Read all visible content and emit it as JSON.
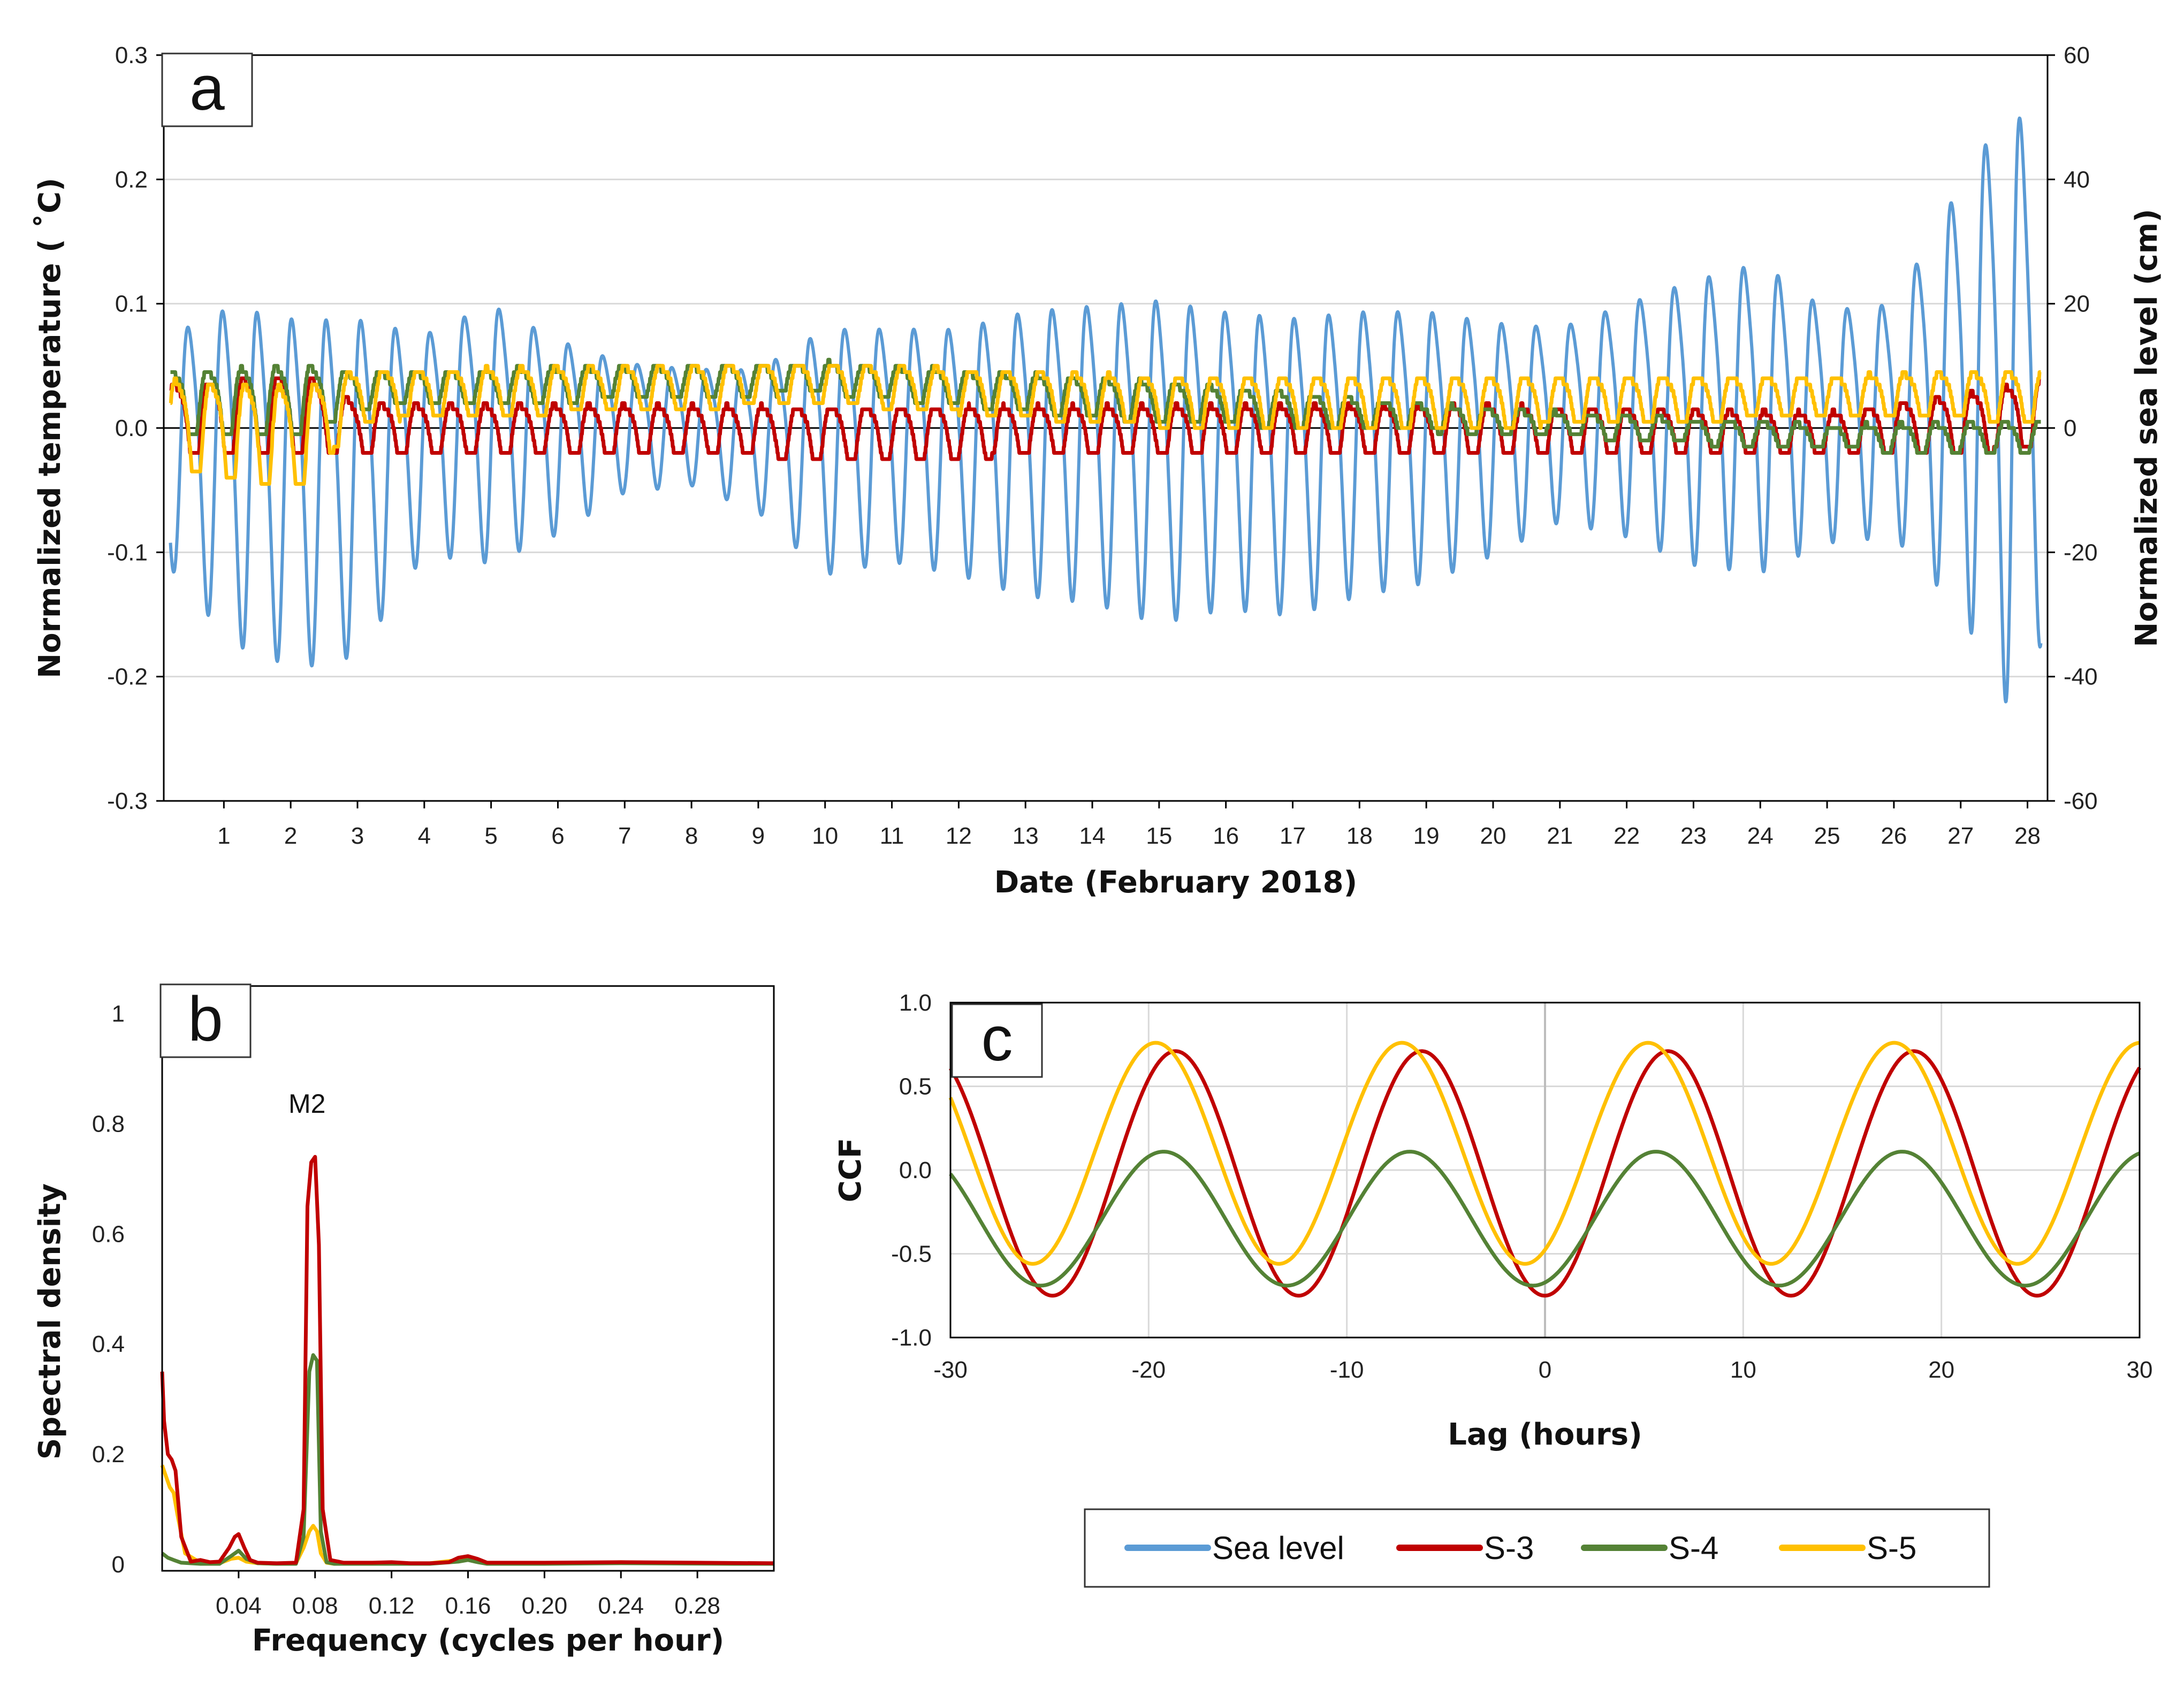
{
  "colors": {
    "sea_level": "#5b9bd5",
    "s3": "#c00000",
    "s4": "#548235",
    "s5": "#ffc000",
    "grid": "#d9d9d9",
    "axis": "#000000"
  },
  "legend": {
    "items": [
      {
        "name": "Sea level",
        "color": "#5b9bd5"
      },
      {
        "name": "S-3",
        "color": "#c00000"
      },
      {
        "name": "S-4",
        "color": "#548235"
      },
      {
        "name": "S-5",
        "color": "#ffc000"
      }
    ]
  },
  "chart_data": [
    {
      "id": "a",
      "panel_label": "a",
      "type": "line",
      "title": "",
      "xlabel": "Date (February 2018)",
      "ylabel": "Normalized temperature ( ˚C)",
      "y2label": "Normalized sea level (cm)",
      "xlim": [
        0.1,
        28.3
      ],
      "ylim": [
        -0.3,
        0.3
      ],
      "y2lim": [
        -60,
        60
      ],
      "x_ticks": [
        1,
        2,
        3,
        4,
        5,
        6,
        7,
        8,
        9,
        10,
        11,
        12,
        13,
        14,
        15,
        16,
        17,
        18,
        19,
        20,
        21,
        22,
        23,
        24,
        25,
        26,
        27,
        28
      ],
      "x_tick_labels": [
        "1",
        "2",
        "3",
        "4",
        "5",
        "6",
        "7",
        "8",
        "9",
        "10",
        "11",
        "12",
        "13",
        "14",
        "15",
        "16",
        "17",
        "18",
        "19",
        "20",
        "21",
        "22",
        "23",
        "24",
        "25",
        "26",
        "27",
        "28"
      ],
      "y_ticks": [
        -0.3,
        -0.2,
        -0.1,
        0.0,
        0.1,
        0.2,
        0.3
      ],
      "y_tick_labels": [
        "-0.3",
        "-0.2",
        "-0.1",
        "0.0",
        "0.1",
        "0.2",
        "0.3"
      ],
      "y2_ticks": [
        -60,
        -40,
        -20,
        0,
        20,
        40,
        60
      ],
      "y2_tick_labels": [
        "-60",
        "-40",
        "-20",
        "0",
        "20",
        "40",
        "60"
      ],
      "grid": true,
      "series": [
        {
          "name": "Sea level",
          "axis": "right",
          "period_days": 0.5175,
          "phase": 1.9,
          "envelope_days": [
            0.2,
            1.1,
            2.1,
            3.0,
            4.0,
            5.0,
            6.0,
            7.0,
            8.0,
            9.0,
            10.0,
            11.0,
            12.0,
            13.0,
            14.0,
            15.0,
            16.0,
            17.0,
            18.0,
            19.0,
            20.0,
            21.0,
            22.0,
            23.0,
            24.0,
            25.0,
            26.0,
            27.0,
            27.8,
            28.2
          ],
          "envelope_amp_cm": [
            18,
            26,
            27,
            26,
            17,
            20,
            15,
            10,
            9,
            11,
            19,
            18,
            19,
            22,
            23,
            25,
            23,
            23,
            22,
            21,
            18,
            15,
            18,
            22,
            24,
            18,
            18,
            33,
            48,
            35
          ],
          "envelope_offset_cm": [
            -2,
            -5,
            -8,
            -7,
            -1,
            1,
            0,
            1,
            1,
            -1,
            -2,
            -1,
            -2,
            -2,
            -2,
            -3,
            -3,
            -4,
            -2,
            -1,
            0,
            2,
            3,
            3,
            4,
            2,
            3,
            8,
            8,
            5
          ]
        },
        {
          "name": "S-3",
          "axis": "left",
          "period_days": 0.5175,
          "phase": 4.3,
          "envelope_days": [
            0.2,
            2.2,
            3.0,
            10.0,
            20.0,
            25.0,
            27.5,
            28.2
          ],
          "envelope_amp": [
            0.035,
            0.04,
            0.025,
            0.025,
            0.025,
            0.02,
            0.03,
            0.035
          ],
          "envelope_offset": [
            0.005,
            0.01,
            -0.002,
            -0.004,
            -0.003,
            -0.005,
            0.005,
            0.01
          ]
        },
        {
          "name": "S-4",
          "axis": "left",
          "period_days": 0.5175,
          "phase": 4.6,
          "envelope_days": [
            0.2,
            2.2,
            3.0,
            10.0,
            15.0,
            20.0,
            25.0,
            28.2
          ],
          "envelope_amp": [
            0.03,
            0.035,
            0.018,
            0.015,
            0.02,
            0.012,
            0.012,
            0.015
          ],
          "envelope_offset": [
            0.02,
            0.02,
            0.03,
            0.04,
            0.02,
            0.005,
            -0.008,
            -0.008
          ]
        },
        {
          "name": "S-5",
          "axis": "left",
          "period_days": 0.5175,
          "phase": 4.0,
          "envelope_days": [
            0.2,
            2.2,
            3.0,
            10.0,
            15.0,
            20.0,
            25.0,
            28.2
          ],
          "envelope_amp": [
            0.045,
            0.05,
            0.025,
            0.02,
            0.025,
            0.025,
            0.02,
            0.025
          ],
          "envelope_offset": [
            0.0,
            -0.01,
            0.025,
            0.035,
            0.02,
            0.02,
            0.025,
            0.025
          ]
        }
      ]
    },
    {
      "id": "b",
      "panel_label": "b",
      "type": "line",
      "xlabel": "Frequency (cycles per hour)",
      "ylabel": "Spectral density",
      "xlim": [
        0.0,
        0.32
      ],
      "ylim": [
        0.0,
        1.05
      ],
      "x_ticks": [
        0.04,
        0.08,
        0.12,
        0.16,
        0.2,
        0.24,
        0.28
      ],
      "x_tick_labels": [
        "0.04",
        "0.08",
        "0.12",
        "0.16",
        "0.20",
        "0.24",
        "0.28"
      ],
      "y_ticks": [
        0,
        0.2,
        0.4,
        0.6,
        0.8,
        1
      ],
      "y_tick_labels": [
        "0",
        "0.2",
        "0.4",
        "0.6",
        "0.8",
        "1"
      ],
      "annotations": [
        {
          "text": "M2",
          "x": 0.08,
          "y": 0.82
        }
      ],
      "series": [
        {
          "name": "S-5",
          "x": [
            0.0,
            0.002,
            0.004,
            0.006,
            0.008,
            0.012,
            0.02,
            0.03,
            0.036,
            0.04,
            0.044,
            0.05,
            0.06,
            0.07,
            0.074,
            0.077,
            0.079,
            0.081,
            0.083,
            0.086,
            0.09,
            0.1,
            0.12,
            0.14,
            0.155,
            0.16,
            0.165,
            0.17,
            0.2,
            0.24,
            0.3,
            0.32
          ],
          "y": [
            0.18,
            0.16,
            0.14,
            0.13,
            0.09,
            0.02,
            0.003,
            0.002,
            0.01,
            0.012,
            0.005,
            0.002,
            0.001,
            0.002,
            0.03,
            0.06,
            0.07,
            0.06,
            0.02,
            0.003,
            0.001,
            0.002,
            0.002,
            0.002,
            0.008,
            0.01,
            0.005,
            0.002,
            0.002,
            0.004,
            0.001,
            0.001
          ]
        },
        {
          "name": "S-4",
          "x": [
            0.0,
            0.003,
            0.006,
            0.01,
            0.02,
            0.03,
            0.036,
            0.04,
            0.044,
            0.05,
            0.06,
            0.07,
            0.074,
            0.077,
            0.079,
            0.081,
            0.083,
            0.086,
            0.09,
            0.1,
            0.12,
            0.14,
            0.155,
            0.16,
            0.165,
            0.17,
            0.2,
            0.24,
            0.3,
            0.32
          ],
          "y": [
            0.02,
            0.012,
            0.008,
            0.003,
            0.001,
            0.001,
            0.015,
            0.025,
            0.01,
            0.002,
            0.001,
            0.001,
            0.05,
            0.35,
            0.38,
            0.37,
            0.06,
            0.004,
            0.001,
            0.001,
            0.001,
            0.001,
            0.005,
            0.008,
            0.004,
            0.001,
            0.001,
            0.002,
            0.001,
            0.001
          ]
        },
        {
          "name": "S-3",
          "x": [
            0.0,
            0.001,
            0.003,
            0.005,
            0.007,
            0.01,
            0.015,
            0.02,
            0.025,
            0.03,
            0.035,
            0.038,
            0.04,
            0.043,
            0.046,
            0.05,
            0.06,
            0.07,
            0.074,
            0.076,
            0.078,
            0.08,
            0.082,
            0.084,
            0.088,
            0.095,
            0.11,
            0.12,
            0.13,
            0.14,
            0.15,
            0.155,
            0.16,
            0.165,
            0.17,
            0.2,
            0.24,
            0.28,
            0.32
          ],
          "y": [
            0.35,
            0.26,
            0.2,
            0.19,
            0.17,
            0.05,
            0.005,
            0.008,
            0.004,
            0.005,
            0.03,
            0.05,
            0.055,
            0.03,
            0.008,
            0.003,
            0.002,
            0.003,
            0.1,
            0.65,
            0.73,
            0.74,
            0.58,
            0.1,
            0.008,
            0.003,
            0.003,
            0.004,
            0.002,
            0.002,
            0.004,
            0.012,
            0.015,
            0.01,
            0.003,
            0.003,
            0.004,
            0.003,
            0.002
          ]
        }
      ]
    },
    {
      "id": "c",
      "panel_label": "c",
      "type": "line",
      "xlabel": "Lag (hours)",
      "ylabel": "CCF",
      "xlim": [
        -30,
        30
      ],
      "ylim": [
        -1.0,
        1.0
      ],
      "x_ticks": [
        -30,
        -20,
        -10,
        0,
        10,
        20,
        30
      ],
      "x_tick_labels": [
        "-30",
        "-20",
        "-10",
        "0",
        "10",
        "20",
        "30"
      ],
      "y_ticks": [
        -1.0,
        -0.5,
        0.0,
        0.5,
        1.0
      ],
      "y_tick_labels": [
        "-1.0",
        "-0.5",
        "0.0",
        "0.5",
        "1.0"
      ],
      "grid": true,
      "series": [
        {
          "name": "S-3",
          "period_hours": 12.42,
          "peak_lag_hours": 6.2,
          "amplitude": 0.73,
          "offset": -0.02
        },
        {
          "name": "S-4",
          "period_hours": 12.42,
          "peak_lag_hours": 5.6,
          "amplitude": 0.4,
          "offset": -0.29
        },
        {
          "name": "S-5",
          "period_hours": 12.42,
          "peak_lag_hours": 5.2,
          "amplitude": 0.66,
          "offset": 0.1
        }
      ]
    }
  ]
}
